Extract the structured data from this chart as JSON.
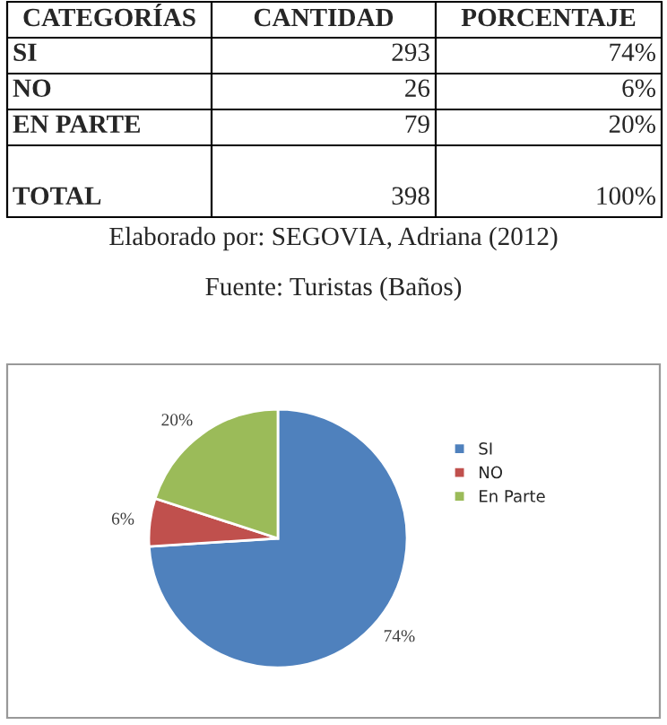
{
  "chart_data": [
    {
      "type": "other",
      "categories": [
        "CATEGORÍAS",
        "CANTIDAD",
        "PORCENTAJE"
      ],
      "y_categories": [
        "SI",
        "NO",
        "EN PARTE",
        "TOTAL"
      ],
      "cell_labels": [
        [
          "293",
          "74%"
        ],
        [
          "26",
          "6%"
        ],
        [
          "79",
          "20%"
        ],
        [
          "398",
          "100%"
        ]
      ],
      "annotations": [
        "Elaborado por: SEGOVIA, Adriana (2012)",
        "Fuente: Turistas (Baños)"
      ]
    },
    {
      "type": "pie",
      "categories": [
        "SI",
        "NO",
        "En Parte"
      ],
      "values": [
        74,
        6,
        20
      ],
      "colors": [
        "#4f81bd",
        "#c0504d",
        "#9bbb59"
      ],
      "value_labels": [
        "74%",
        "6%",
        "20%"
      ],
      "legend": "right"
    }
  ]
}
